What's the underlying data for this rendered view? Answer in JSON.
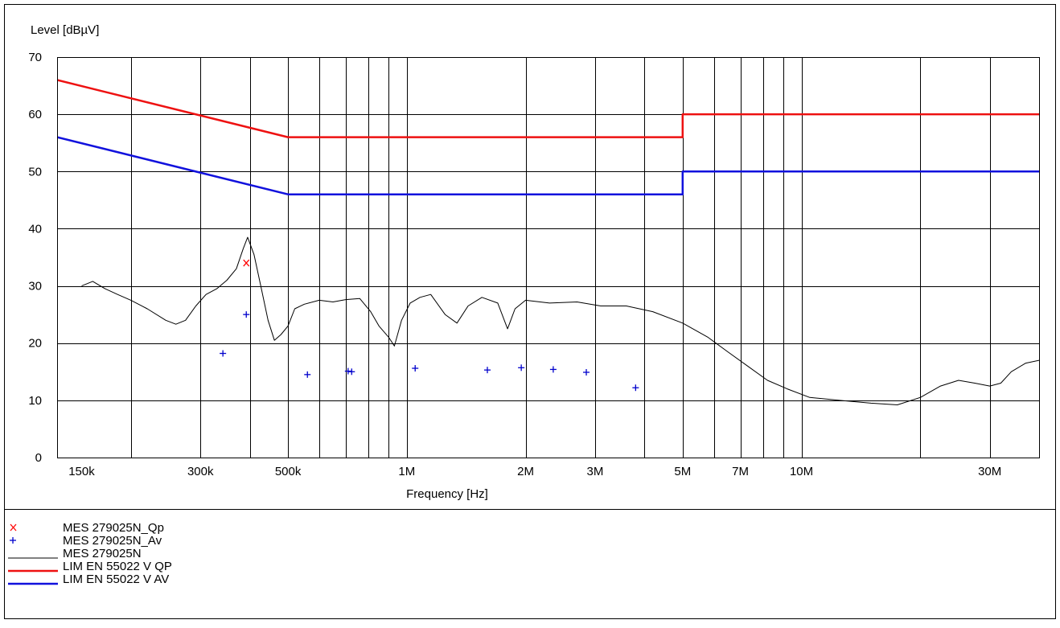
{
  "chart_data": {
    "type": "line",
    "title": "",
    "xlabel": "Frequency [Hz]",
    "ylabel": "Level [dBµV]",
    "x_scale": "log",
    "xlim": [
      130000,
      40000000
    ],
    "ylim": [
      0,
      70
    ],
    "grid": true,
    "yticks": [
      "0",
      "10",
      "20",
      "30",
      "40",
      "50",
      "60",
      "70"
    ],
    "xticks": [
      {
        "value": 150000,
        "label": "150k"
      },
      {
        "value": 300000,
        "label": "300k"
      },
      {
        "value": 500000,
        "label": "500k"
      },
      {
        "value": 1000000,
        "label": "1M"
      },
      {
        "value": 2000000,
        "label": "2M"
      },
      {
        "value": 3000000,
        "label": "3M"
      },
      {
        "value": 5000000,
        "label": "5M"
      },
      {
        "value": 7000000,
        "label": "7M"
      },
      {
        "value": 10000000,
        "label": "10M"
      },
      {
        "value": 30000000,
        "label": "30M"
      }
    ],
    "series": [
      {
        "name": "MES  279025N_Qp",
        "style": "marker-x",
        "color": "#ff0000",
        "points": [
          [
            392000,
            34.0
          ]
        ]
      },
      {
        "name": "MES  279025N_Av",
        "style": "marker-plus",
        "color": "#0000cc",
        "points": [
          [
            342000,
            18.2
          ],
          [
            392000,
            25.0
          ],
          [
            560000,
            14.5
          ],
          [
            710000,
            15.1
          ],
          [
            725000,
            15.0
          ],
          [
            1050000,
            15.6
          ],
          [
            1600000,
            15.3
          ],
          [
            1950000,
            15.7
          ],
          [
            2350000,
            15.4
          ],
          [
            2850000,
            14.9
          ],
          [
            3800000,
            12.2
          ]
        ]
      },
      {
        "name": "MES  279025N",
        "style": "line-thin",
        "color": "#000000",
        "points": [
          [
            150000,
            30.0
          ],
          [
            160000,
            30.8
          ],
          [
            172000,
            29.5
          ],
          [
            185000,
            28.5
          ],
          [
            200000,
            27.5
          ],
          [
            220000,
            26.0
          ],
          [
            245000,
            24.0
          ],
          [
            260000,
            23.3
          ],
          [
            275000,
            24.0
          ],
          [
            292000,
            26.5
          ],
          [
            310000,
            28.5
          ],
          [
            330000,
            29.5
          ],
          [
            350000,
            31.0
          ],
          [
            370000,
            33.0
          ],
          [
            385000,
            36.5
          ],
          [
            395000,
            38.5
          ],
          [
            410000,
            35.5
          ],
          [
            428000,
            29.5
          ],
          [
            445000,
            24.0
          ],
          [
            462000,
            20.5
          ],
          [
            480000,
            21.5
          ],
          [
            500000,
            23.0
          ],
          [
            520000,
            26.0
          ],
          [
            550000,
            26.8
          ],
          [
            600000,
            27.5
          ],
          [
            650000,
            27.2
          ],
          [
            700000,
            27.6
          ],
          [
            760000,
            27.8
          ],
          [
            810000,
            25.5
          ],
          [
            850000,
            23.0
          ],
          [
            900000,
            21.0
          ],
          [
            930000,
            19.5
          ],
          [
            970000,
            24.0
          ],
          [
            1020000,
            27.0
          ],
          [
            1080000,
            28.0
          ],
          [
            1150000,
            28.5
          ],
          [
            1250000,
            25.0
          ],
          [
            1340000,
            23.5
          ],
          [
            1430000,
            26.5
          ],
          [
            1550000,
            28.0
          ],
          [
            1700000,
            27.0
          ],
          [
            1800000,
            22.5
          ],
          [
            1880000,
            26.0
          ],
          [
            2000000,
            27.5
          ],
          [
            2300000,
            27.0
          ],
          [
            2700000,
            27.2
          ],
          [
            3100000,
            26.5
          ],
          [
            3600000,
            26.5
          ],
          [
            4200000,
            25.5
          ],
          [
            5000000,
            23.5
          ],
          [
            5800000,
            21.0
          ],
          [
            6500000,
            18.5
          ],
          [
            7300000,
            16.0
          ],
          [
            8200000,
            13.5
          ],
          [
            9200000,
            12.0
          ],
          [
            10500000,
            10.5
          ],
          [
            12500000,
            10.0
          ],
          [
            15000000,
            9.5
          ],
          [
            17500000,
            9.2
          ],
          [
            20000000,
            10.5
          ],
          [
            22500000,
            12.5
          ],
          [
            25000000,
            13.5
          ],
          [
            27500000,
            13.0
          ],
          [
            30000000,
            12.5
          ],
          [
            32000000,
            13.0
          ],
          [
            34000000,
            15.0
          ],
          [
            37000000,
            16.5
          ],
          [
            40000000,
            17.0
          ]
        ]
      },
      {
        "name": "LIM  EN 55022 V QP",
        "style": "line-thick",
        "color": "#ee1111",
        "points": [
          [
            130000,
            66.0
          ],
          [
            500000,
            56.0
          ],
          [
            5000000,
            56.0
          ],
          [
            5000000,
            60.0
          ],
          [
            40000000,
            60.0
          ]
        ]
      },
      {
        "name": "LIM  EN 55022 V AV",
        "style": "line-thick",
        "color": "#1111dd",
        "points": [
          [
            130000,
            56.0
          ],
          [
            500000,
            46.0
          ],
          [
            5000000,
            46.0
          ],
          [
            5000000,
            50.0
          ],
          [
            40000000,
            50.0
          ]
        ]
      }
    ],
    "legend": [
      {
        "symbol": "x",
        "label": "MES  279025N_Qp"
      },
      {
        "symbol": "+",
        "label": "MES  279025N_Av"
      },
      {
        "symbol": "",
        "label": "MES  279025N"
      },
      {
        "symbol": "",
        "label": "LIM  EN 55022 V QP"
      },
      {
        "symbol": "",
        "label": "LIM  EN 55022 V AV"
      }
    ]
  }
}
